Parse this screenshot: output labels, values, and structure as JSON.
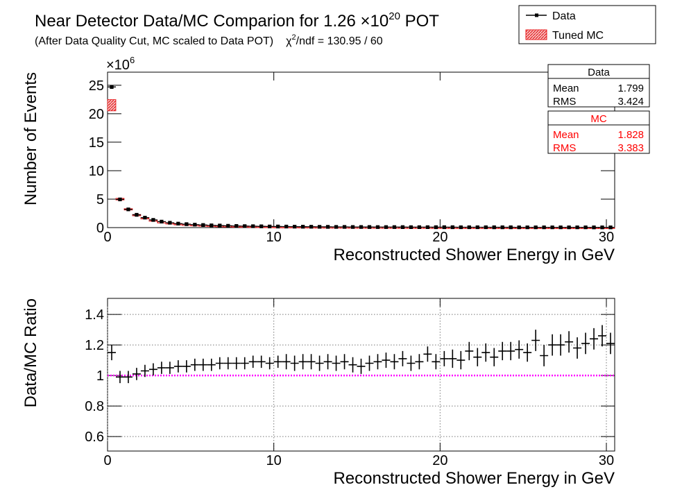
{
  "chart_data": [
    {
      "type": "errorbar",
      "title": "Near Detector Data/MC Comparion for 1.26 ×10",
      "title_exponent": "20",
      "title_suffix": " POT",
      "subtitle": "(After Data Quality Cut, MC scaled to Data POT)",
      "chi2_symbol": "χ",
      "chi2_exponent": "2",
      "chi2_text": "/ndf = 130.95 / 60",
      "y_multiplier": "×10",
      "y_multiplier_exponent": "6",
      "x_label": "Reconstructed Shower Energy in GeV",
      "y_label": "Number of Events",
      "x": [
        0.25,
        0.75,
        1.25,
        1.75,
        2.25,
        2.75,
        3.25,
        3.75,
        4.25,
        4.75,
        5.25,
        5.75,
        6.25,
        6.75,
        7.25,
        7.75,
        8.25,
        8.75,
        9.25,
        9.75,
        10.25,
        10.75,
        11.25,
        11.75,
        12.25,
        12.75,
        13.25,
        13.75,
        14.25,
        14.75,
        15.25,
        15.75,
        16.25,
        16.75,
        17.25,
        17.75,
        18.25,
        18.75,
        19.25,
        19.75,
        20.25,
        20.75,
        21.25,
        21.75,
        22.25,
        22.75,
        23.25,
        23.75,
        24.25,
        24.75,
        25.25,
        25.75,
        26.25,
        26.75,
        27.25,
        27.75,
        28.25,
        28.75,
        29.25,
        29.75,
        30.25
      ],
      "xlim": [
        0,
        30.5
      ],
      "xticks": [
        0,
        10,
        20,
        30
      ],
      "ylim": [
        0,
        27.3
      ],
      "yticks": [
        0,
        5,
        10,
        15,
        20,
        25
      ],
      "grid": false,
      "legend": "top-right",
      "series": [
        {
          "name": "Data",
          "color": "#000000",
          "marker": "point",
          "values": [
            24.7,
            4.95,
            3.2,
            2.25,
            1.75,
            1.35,
            1.05,
            0.85,
            0.7,
            0.6,
            0.52,
            0.45,
            0.4,
            0.36,
            0.32,
            0.29,
            0.26,
            0.24,
            0.22,
            0.2,
            0.19,
            0.18,
            0.17,
            0.16,
            0.15,
            0.14,
            0.13,
            0.125,
            0.12,
            0.11,
            0.105,
            0.1,
            0.095,
            0.09,
            0.087,
            0.083,
            0.08,
            0.077,
            0.074,
            0.071,
            0.068,
            0.066,
            0.064,
            0.062,
            0.06,
            0.058,
            0.056,
            0.054,
            0.052,
            0.05,
            0.049,
            0.048,
            0.047,
            0.046,
            0.045,
            0.044,
            0.043,
            0.042,
            0.041,
            0.04,
            0.039
          ]
        },
        {
          "name": "Tuned MC",
          "color": "#e8191b",
          "marker": "box",
          "values": [
            21.5,
            5.0,
            3.23,
            2.23,
            1.7,
            1.3,
            1.0,
            0.81,
            0.66,
            0.57,
            0.49,
            0.42,
            0.37,
            0.33,
            0.3,
            0.27,
            0.24,
            0.22,
            0.2,
            0.185,
            0.175,
            0.165,
            0.157,
            0.147,
            0.138,
            0.13,
            0.12,
            0.116,
            0.11,
            0.103,
            0.099,
            0.093,
            0.087,
            0.082,
            0.079,
            0.075,
            0.073,
            0.069,
            0.068,
            0.064,
            0.062,
            0.059,
            0.057,
            0.055,
            0.052,
            0.05,
            0.048,
            0.046,
            0.045,
            0.043,
            0.042,
            0.041,
            0.04,
            0.039,
            0.038,
            0.037,
            0.036,
            0.035,
            0.034,
            0.033,
            0.032
          ],
          "errors": [
            1.0,
            0.15,
            0.1,
            0.08,
            0.06,
            0.05,
            0.05,
            0.05,
            0.05,
            0.05,
            0.04,
            0.04,
            0.04,
            0.04,
            0.04,
            0.04,
            0.04,
            0.04,
            0.04,
            0.04,
            0.02,
            0.02,
            0.02,
            0.02,
            0.02,
            0.02,
            0.02,
            0.02,
            0.02,
            0.02,
            0.02,
            0.02,
            0.02,
            0.02,
            0.02,
            0.02,
            0.02,
            0.02,
            0.02,
            0.02,
            0.02,
            0.02,
            0.02,
            0.02,
            0.02,
            0.02,
            0.02,
            0.02,
            0.02,
            0.02,
            0.02,
            0.02,
            0.02,
            0.02,
            0.02,
            0.02,
            0.02,
            0.02,
            0.02,
            0.02,
            0.02
          ]
        }
      ],
      "stats": [
        {
          "name": "Data",
          "color": "#000000",
          "rows": [
            [
              "Mean",
              1.799
            ],
            [
              "RMS",
              3.424
            ]
          ]
        },
        {
          "name": "MC",
          "color": "#ff0000",
          "rows": [
            [
              "Mean",
              1.828
            ],
            [
              "RMS",
              3.383
            ]
          ]
        }
      ]
    },
    {
      "type": "errorbar",
      "x_label": "Reconstructed Shower Energy in GeV",
      "y_label": "Data/MC Ratio",
      "x": [
        0.25,
        0.75,
        1.25,
        1.75,
        2.25,
        2.75,
        3.25,
        3.75,
        4.25,
        4.75,
        5.25,
        5.75,
        6.25,
        6.75,
        7.25,
        7.75,
        8.25,
        8.75,
        9.25,
        9.75,
        10.25,
        10.75,
        11.25,
        11.75,
        12.25,
        12.75,
        13.25,
        13.75,
        14.25,
        14.75,
        15.25,
        15.75,
        16.25,
        16.75,
        17.25,
        17.75,
        18.25,
        18.75,
        19.25,
        19.75,
        20.25,
        20.75,
        21.25,
        21.75,
        22.25,
        22.75,
        23.25,
        23.75,
        24.25,
        24.75,
        25.25,
        25.75,
        26.25,
        26.75,
        27.25,
        27.75,
        28.25,
        28.75,
        29.25,
        29.75,
        30.25
      ],
      "xlim": [
        0,
        30.5
      ],
      "xticks": [
        0,
        10,
        20,
        30
      ],
      "ylim": [
        0.505,
        1.505
      ],
      "yticks": [
        0.6,
        0.8,
        1,
        1.2,
        1.4
      ],
      "grid": true,
      "reference_line": 1,
      "reference_color": "#ff00ff",
      "series": [
        {
          "color": "#000000",
          "marker": "cross",
          "values": [
            1.15,
            0.99,
            0.99,
            1.01,
            1.03,
            1.04,
            1.05,
            1.05,
            1.06,
            1.06,
            1.07,
            1.07,
            1.07,
            1.08,
            1.08,
            1.08,
            1.08,
            1.09,
            1.09,
            1.08,
            1.09,
            1.09,
            1.08,
            1.09,
            1.09,
            1.08,
            1.09,
            1.08,
            1.09,
            1.07,
            1.06,
            1.08,
            1.09,
            1.1,
            1.09,
            1.11,
            1.08,
            1.09,
            1.14,
            1.09,
            1.11,
            1.11,
            1.1,
            1.16,
            1.12,
            1.15,
            1.12,
            1.16,
            1.16,
            1.17,
            1.15,
            1.23,
            1.13,
            1.2,
            1.2,
            1.22,
            1.18,
            1.21,
            1.24,
            1.26,
            1.21
          ],
          "errors": [
            0.05,
            0.04,
            0.04,
            0.04,
            0.04,
            0.04,
            0.04,
            0.04,
            0.04,
            0.04,
            0.04,
            0.04,
            0.04,
            0.04,
            0.04,
            0.04,
            0.04,
            0.04,
            0.04,
            0.04,
            0.04,
            0.05,
            0.05,
            0.05,
            0.05,
            0.05,
            0.05,
            0.05,
            0.05,
            0.05,
            0.05,
            0.05,
            0.05,
            0.05,
            0.05,
            0.05,
            0.05,
            0.05,
            0.05,
            0.05,
            0.05,
            0.06,
            0.06,
            0.06,
            0.06,
            0.06,
            0.06,
            0.06,
            0.06,
            0.06,
            0.06,
            0.07,
            0.07,
            0.07,
            0.07,
            0.07,
            0.07,
            0.07,
            0.07,
            0.07,
            0.07
          ]
        }
      ]
    }
  ]
}
